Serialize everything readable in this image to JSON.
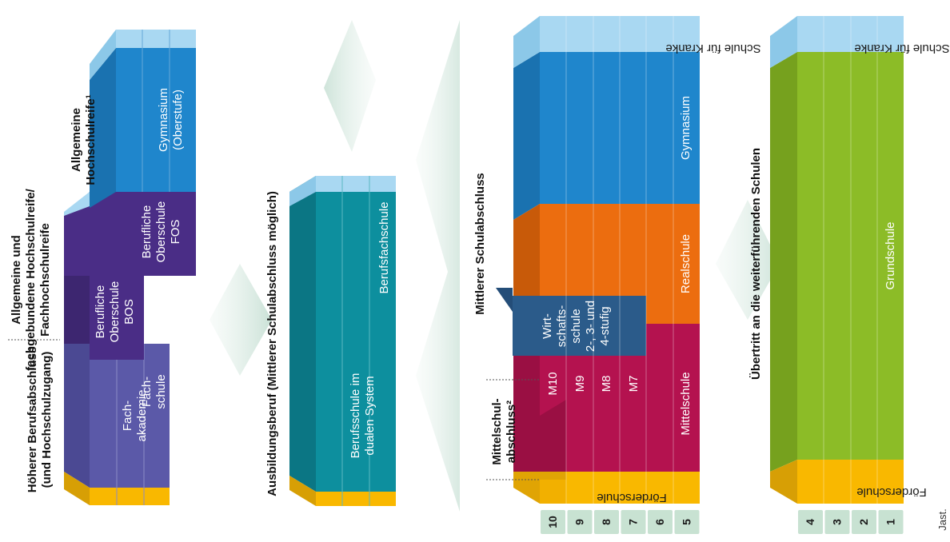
{
  "headings": {
    "hoeherer_berufsabschluss": [
      "Höherer Berufsabschluss",
      "(und Hochschulzugang)"
    ],
    "fachgebundene_hochschulreife": [
      "Allgemeine und",
      "fachgebundene Hochschulreife/",
      "Fachhochschulreife"
    ],
    "allgemeine_hochschulreife": [
      "Allgemeine",
      "Hochschulreife¹"
    ],
    "ausbildungsberuf": "Ausbildungsberuf (Mittlerer Schulabschluss möglich)",
    "mittelschulabschluss": [
      "Mittelschul-",
      "abschluss²"
    ],
    "mittlerer_schulabschluss": "Mittlerer Schulabschluss",
    "uebertritt": "Übertritt an die weiterführenden Schulen"
  },
  "upper": {
    "fachakademie": [
      "Fach-",
      "akademie"
    ],
    "fachschule": [
      "Fach-",
      "schule"
    ],
    "bos": [
      "Berufliche",
      "Oberschule",
      "BOS"
    ],
    "fos": [
      "Berufliche",
      "Oberschule",
      "FOS"
    ],
    "gymnasium_oberstufe": [
      "Gymnasium",
      "(Oberstufe)"
    ]
  },
  "berufsbildung": {
    "berufsschule_dual": [
      "Berufsschule im",
      "dualen System"
    ],
    "berufsfachschule": "Berufsfachschule"
  },
  "secondary": {
    "foerderschule": "Förderschule",
    "schule_fuer_kranke": "Schule für Kranke",
    "mittelschule": "Mittelschule",
    "m_grades": [
      "M10",
      "M9",
      "M8",
      "M7"
    ],
    "wirtschaftsschule": [
      "Wirt-",
      "schafts-",
      "schule",
      "2-, 3- und",
      "4-stufig"
    ],
    "realschule": "Realschule",
    "gymnasium": "Gymnasium",
    "grades": [
      "10",
      "9",
      "8",
      "7",
      "6",
      "5"
    ]
  },
  "primary": {
    "foerderschule": "Förderschule",
    "schule_fuer_kranke": "Schule für Kranke",
    "grundschule": "Grundschule",
    "grades": [
      "4",
      "3",
      "2",
      "1"
    ]
  },
  "credit": "Jast.",
  "colors": {
    "yellow": "#f9b800",
    "purple_light": "#5b59a8",
    "purple_dark": "#4a2d86",
    "blue": "#1f86cc",
    "light_blue": "#a9d8f2",
    "teal": "#0d8f9e",
    "crimson": "#b4124f",
    "navy": "#2b5b8a",
    "orange": "#ec6d0f",
    "green": "#8cbc27",
    "grade_tab": "#c8e2d2"
  }
}
